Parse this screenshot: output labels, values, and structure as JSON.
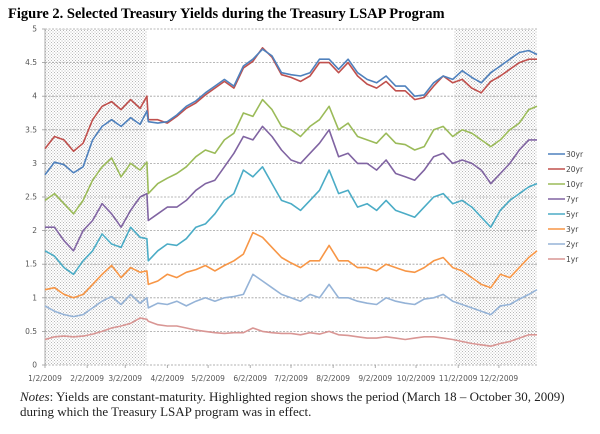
{
  "figure": {
    "title": "Figure 2.  Selected Treasury Yields during the Treasury LSAP Program",
    "notes_lead": "Notes",
    "notes_text": ": Yields are constant-maturity.  Highlighted region shows the period (March 18 – October 30, 2009) during which the Treasury LSAP program was in effect."
  },
  "chart_data": {
    "type": "line",
    "title": "Figure 2.  Selected Treasury Yields during the Treasury LSAP Program",
    "xlabel": "",
    "ylabel": "",
    "ylim": [
      0,
      5
    ],
    "yticks": [
      0,
      0.5,
      1,
      1.5,
      2,
      2.5,
      3,
      3.5,
      4,
      4.5,
      5
    ],
    "ytick_labels": [
      "0",
      "0.5",
      "1",
      "1.5",
      "2",
      "2.5",
      "3",
      "3.5",
      "4",
      "4.5",
      "5"
    ],
    "xlim_days": [
      0,
      362
    ],
    "xticks": [
      {
        "label": "1/2/2009",
        "day": 0
      },
      {
        "label": "2/2/2009",
        "day": 31
      },
      {
        "label": "3/2/2009",
        "day": 59
      },
      {
        "label": "4/2/2009",
        "day": 90
      },
      {
        "label": "5/2/2009",
        "day": 120
      },
      {
        "label": "6/2/2009",
        "day": 151
      },
      {
        "label": "7/2/2009",
        "day": 181
      },
      {
        "label": "8/2/2009",
        "day": 212
      },
      {
        "label": "9/2/2009",
        "day": 243
      },
      {
        "label": "10/2/2009",
        "day": 273
      },
      {
        "label": "11/2/2009",
        "day": 304
      },
      {
        "label": "12/2/2009",
        "day": 334
      }
    ],
    "grid": "horizontal-dashed",
    "legend_position": "right",
    "shaded_regions_days": [
      [
        0,
        75
      ],
      [
        301,
        362
      ]
    ],
    "shaded_region_note": "Unshaded period March 18 - October 30, 2009 (LSAP in effect)",
    "x_days": [
      0,
      7,
      14,
      21,
      28,
      35,
      42,
      49,
      56,
      63,
      70,
      75,
      76,
      83,
      90,
      97,
      104,
      111,
      118,
      125,
      132,
      139,
      146,
      153,
      160,
      167,
      174,
      181,
      188,
      195,
      202,
      209,
      216,
      223,
      230,
      237,
      244,
      251,
      258,
      265,
      272,
      279,
      286,
      293,
      300,
      307,
      314,
      321,
      328,
      335,
      342,
      349,
      356,
      362
    ],
    "series": [
      {
        "name": "30yr",
        "color": "#4f81bd",
        "values": [
          2.83,
          3.02,
          2.98,
          2.86,
          2.95,
          3.35,
          3.55,
          3.65,
          3.55,
          3.68,
          3.58,
          3.78,
          3.62,
          3.6,
          3.62,
          3.72,
          3.85,
          3.93,
          4.05,
          4.15,
          4.25,
          4.15,
          4.45,
          4.55,
          4.7,
          4.6,
          4.35,
          4.32,
          4.3,
          4.35,
          4.55,
          4.55,
          4.4,
          4.55,
          4.35,
          4.25,
          4.2,
          4.3,
          4.15,
          4.15,
          4.0,
          4.02,
          4.2,
          4.3,
          4.25,
          4.38,
          4.28,
          4.2,
          4.35,
          4.45,
          4.55,
          4.65,
          4.68,
          4.62
        ]
      },
      {
        "name": "20yr",
        "color": "#c0504d",
        "values": [
          3.22,
          3.4,
          3.35,
          3.18,
          3.3,
          3.65,
          3.85,
          3.92,
          3.8,
          3.95,
          3.82,
          4.0,
          3.65,
          3.65,
          3.6,
          3.7,
          3.82,
          3.9,
          4.02,
          4.12,
          4.22,
          4.12,
          4.42,
          4.52,
          4.72,
          4.58,
          4.32,
          4.28,
          4.22,
          4.3,
          4.5,
          4.5,
          4.35,
          4.5,
          4.3,
          4.18,
          4.12,
          4.22,
          4.08,
          4.08,
          3.95,
          3.98,
          4.15,
          4.3,
          4.2,
          4.25,
          4.12,
          4.05,
          4.22,
          4.3,
          4.4,
          4.5,
          4.55,
          4.55
        ]
      },
      {
        "name": "10yr",
        "color": "#9bbb59",
        "values": [
          2.45,
          2.55,
          2.4,
          2.25,
          2.45,
          2.75,
          2.95,
          3.08,
          2.8,
          3.0,
          2.9,
          3.02,
          2.55,
          2.7,
          2.78,
          2.85,
          2.95,
          3.1,
          3.2,
          3.15,
          3.35,
          3.45,
          3.75,
          3.7,
          3.95,
          3.8,
          3.55,
          3.5,
          3.4,
          3.55,
          3.65,
          3.85,
          3.5,
          3.6,
          3.4,
          3.35,
          3.3,
          3.45,
          3.3,
          3.28,
          3.2,
          3.25,
          3.5,
          3.55,
          3.4,
          3.5,
          3.45,
          3.35,
          3.25,
          3.35,
          3.5,
          3.6,
          3.8,
          3.85
        ]
      },
      {
        "name": "7yr",
        "color": "#8064a2",
        "values": [
          2.05,
          2.05,
          1.85,
          1.7,
          2.0,
          2.15,
          2.4,
          2.25,
          2.05,
          2.3,
          2.5,
          2.55,
          2.15,
          2.25,
          2.35,
          2.35,
          2.45,
          2.6,
          2.7,
          2.75,
          2.95,
          3.15,
          3.4,
          3.35,
          3.55,
          3.4,
          3.2,
          3.05,
          3.0,
          3.15,
          3.3,
          3.5,
          3.1,
          3.15,
          3.0,
          3.0,
          2.9,
          3.05,
          2.85,
          2.8,
          2.75,
          2.9,
          3.1,
          3.15,
          3.0,
          3.05,
          3.0,
          2.9,
          2.7,
          2.85,
          3.0,
          3.2,
          3.35,
          3.35
        ]
      },
      {
        "name": "5yr",
        "color": "#4bacc6",
        "values": [
          1.7,
          1.62,
          1.45,
          1.35,
          1.55,
          1.7,
          1.95,
          1.8,
          1.75,
          2.05,
          1.9,
          1.88,
          1.55,
          1.7,
          1.8,
          1.78,
          1.88,
          2.05,
          2.1,
          2.25,
          2.45,
          2.55,
          2.9,
          2.8,
          2.95,
          2.7,
          2.45,
          2.4,
          2.3,
          2.45,
          2.6,
          2.9,
          2.55,
          2.6,
          2.35,
          2.4,
          2.3,
          2.45,
          2.3,
          2.25,
          2.2,
          2.35,
          2.5,
          2.55,
          2.4,
          2.45,
          2.35,
          2.2,
          2.05,
          2.3,
          2.45,
          2.55,
          2.65,
          2.7
        ]
      },
      {
        "name": "3yr",
        "color": "#f79646",
        "values": [
          1.12,
          1.15,
          1.05,
          1.0,
          1.05,
          1.2,
          1.35,
          1.48,
          1.3,
          1.45,
          1.38,
          1.4,
          1.2,
          1.25,
          1.35,
          1.3,
          1.38,
          1.42,
          1.48,
          1.4,
          1.48,
          1.55,
          1.65,
          1.97,
          1.9,
          1.75,
          1.6,
          1.52,
          1.45,
          1.55,
          1.55,
          1.78,
          1.55,
          1.55,
          1.45,
          1.45,
          1.4,
          1.5,
          1.45,
          1.4,
          1.38,
          1.45,
          1.55,
          1.6,
          1.45,
          1.4,
          1.3,
          1.2,
          1.15,
          1.35,
          1.3,
          1.45,
          1.6,
          1.7
        ]
      },
      {
        "name": "2yr",
        "color": "#95b3d7",
        "values": [
          0.88,
          0.8,
          0.75,
          0.72,
          0.75,
          0.85,
          0.95,
          1.02,
          0.9,
          1.05,
          0.92,
          1.0,
          0.85,
          0.92,
          0.9,
          0.95,
          0.88,
          0.95,
          1.0,
          0.95,
          1.0,
          1.02,
          1.05,
          1.35,
          1.25,
          1.15,
          1.05,
          1.0,
          0.95,
          1.05,
          1.0,
          1.2,
          1.0,
          1.0,
          0.95,
          0.92,
          0.9,
          1.0,
          0.95,
          0.92,
          0.9,
          0.98,
          1.0,
          1.05,
          0.95,
          0.9,
          0.85,
          0.8,
          0.75,
          0.88,
          0.9,
          0.98,
          1.05,
          1.12
        ]
      },
      {
        "name": "1yr",
        "color": "#d99694",
        "values": [
          0.38,
          0.42,
          0.43,
          0.42,
          0.43,
          0.46,
          0.5,
          0.55,
          0.58,
          0.62,
          0.7,
          0.68,
          0.65,
          0.6,
          0.58,
          0.58,
          0.55,
          0.52,
          0.5,
          0.48,
          0.47,
          0.48,
          0.48,
          0.55,
          0.5,
          0.48,
          0.47,
          0.47,
          0.45,
          0.48,
          0.46,
          0.5,
          0.45,
          0.44,
          0.42,
          0.4,
          0.4,
          0.42,
          0.4,
          0.38,
          0.4,
          0.42,
          0.42,
          0.4,
          0.38,
          0.35,
          0.32,
          0.3,
          0.28,
          0.32,
          0.35,
          0.4,
          0.45,
          0.45
        ]
      }
    ]
  }
}
